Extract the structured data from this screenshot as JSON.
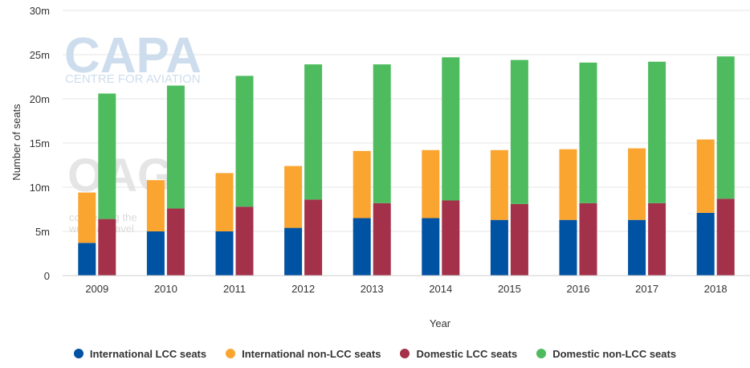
{
  "chart_data": {
    "type": "bar",
    "xlabel": "Year",
    "ylabel": "Number of seats",
    "ylim": [
      0,
      30000000
    ],
    "yticks": [
      "0",
      "5m",
      "10m",
      "15m",
      "20m",
      "25m",
      "30m"
    ],
    "grid": true,
    "legend_position": "bottom",
    "categories": [
      "2009",
      "2010",
      "2011",
      "2012",
      "2013",
      "2014",
      "2015",
      "2016",
      "2017",
      "2018"
    ],
    "stacks": [
      {
        "name": "International",
        "series": [
          "International LCC seats",
          "International non-LCC seats"
        ]
      },
      {
        "name": "Domestic",
        "series": [
          "Domestic LCC seats",
          "Domestic non-LCC seats"
        ]
      }
    ],
    "series": [
      {
        "name": "International LCC seats",
        "stack": "International",
        "color": "#0052a3",
        "values": [
          3700000,
          5000000,
          5000000,
          5400000,
          6500000,
          6500000,
          6300000,
          6300000,
          6300000,
          7100000
        ]
      },
      {
        "name": "International non-LCC seats",
        "stack": "International",
        "color": "#faa530",
        "values": [
          5700000,
          5800000,
          6600000,
          7000000,
          7600000,
          7700000,
          7900000,
          8000000,
          8100000,
          8300000
        ]
      },
      {
        "name": "Domestic LCC seats",
        "stack": "Domestic",
        "color": "#a3314a",
        "values": [
          6400000,
          7600000,
          7800000,
          8600000,
          8200000,
          8500000,
          8100000,
          8200000,
          8200000,
          8700000
        ]
      },
      {
        "name": "Domestic non-LCC seats",
        "stack": "Domestic",
        "color": "#4ebc5e",
        "values": [
          14200000,
          13900000,
          14800000,
          15300000,
          15700000,
          16200000,
          16300000,
          15900000,
          16000000,
          16100000
        ]
      }
    ]
  },
  "watermarks": {
    "capa_logo": "CAPA",
    "capa_tagline": "CENTRE FOR AVIATION",
    "oag_logo": "OAG",
    "oag_tagline_1": "connecting the",
    "oag_tagline_2": "world of travel"
  },
  "colors": {
    "grid": "#e6e6e6",
    "axis_text": "#333333",
    "background": "#ffffff"
  }
}
